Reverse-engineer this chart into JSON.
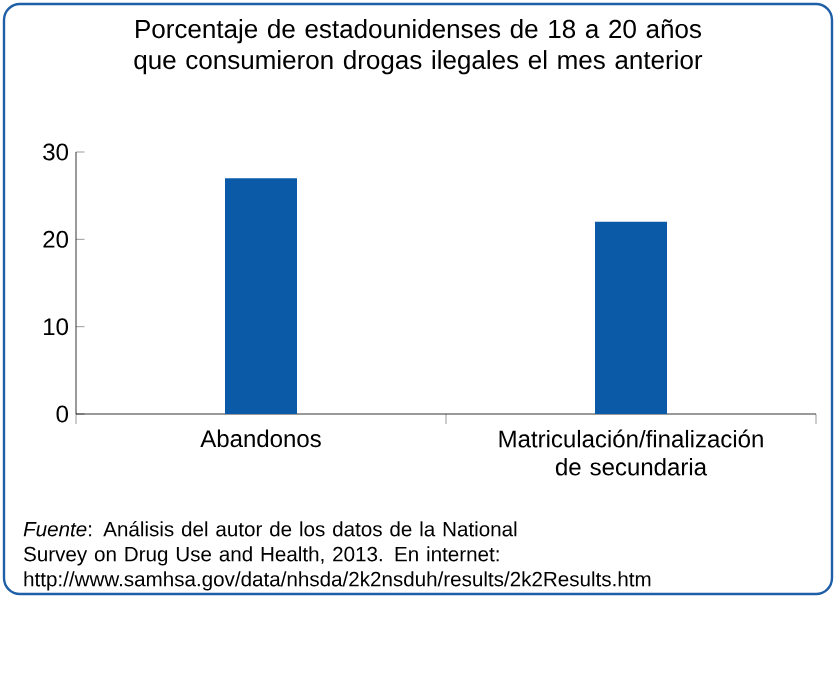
{
  "chart_data": {
    "type": "bar",
    "title": "Porcentaje de estadounidenses de 18 a 20 años que consumieron drogas ilegales el mes anterior",
    "categories": [
      "Abandonos",
      "Matriculación/finalización de secundaria"
    ],
    "values": [
      27,
      22
    ],
    "color": "#0a5aa8",
    "ylim": [
      0,
      30
    ],
    "yticks": [
      0,
      10,
      20,
      30
    ],
    "grid": false,
    "annotations": [
      "*Fuente*: Análisis del autor de los datos de la National Survey on Drug Use and Health, 2013. En internet: http://www.samhsa.gov/data/nhsda/2k2nsduh/results/2k2Results.htm"
    ]
  }
}
